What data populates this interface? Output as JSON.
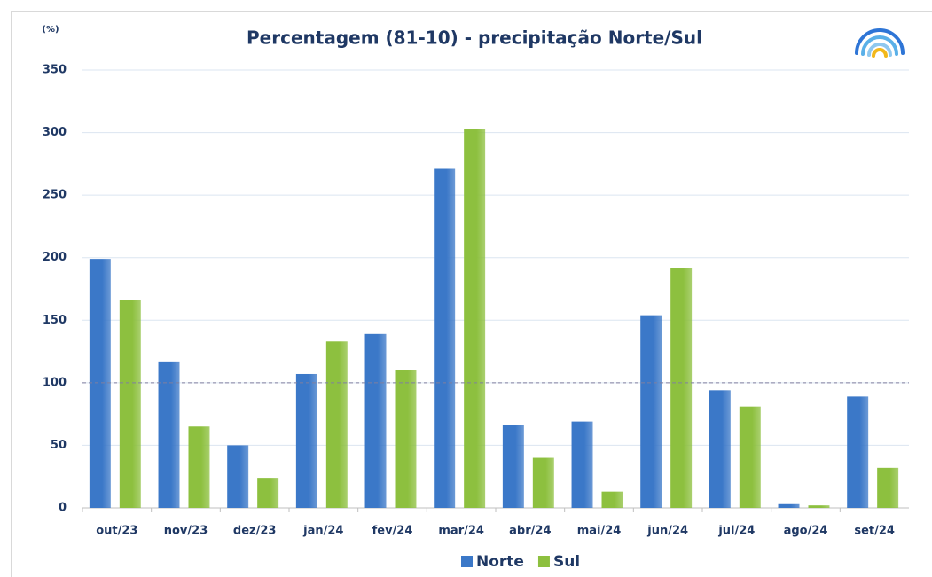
{
  "chart_data": {
    "type": "bar",
    "title": "Percentagem (81-10) - precipitação Norte/Sul",
    "y_label": "(%)",
    "categories": [
      "out/23",
      "nov/23",
      "dez/23",
      "jan/24",
      "fev/24",
      "mar/24",
      "abr/24",
      "mai/24",
      "jun/24",
      "jul/24",
      "ago/24",
      "set/24"
    ],
    "series": [
      {
        "name": "Norte",
        "color": "#3b78c8",
        "values": [
          199,
          117,
          50,
          107,
          139,
          271,
          66,
          69,
          154,
          94,
          3,
          89
        ]
      },
      {
        "name": "Sul",
        "color": "#8dc03f",
        "values": [
          166,
          65,
          24,
          133,
          110,
          303,
          40,
          13,
          192,
          81,
          2,
          32
        ]
      }
    ],
    "ylim": [
      0,
      350
    ],
    "yticks": [
      0,
      50,
      100,
      150,
      200,
      250,
      300,
      350
    ],
    "grid": true,
    "reference_line": 100,
    "legend": "bottom"
  }
}
